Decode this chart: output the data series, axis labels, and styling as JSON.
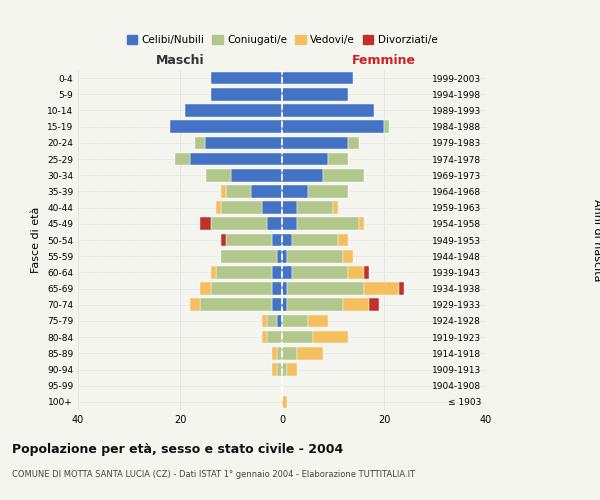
{
  "age_groups": [
    "100+",
    "95-99",
    "90-94",
    "85-89",
    "80-84",
    "75-79",
    "70-74",
    "65-69",
    "60-64",
    "55-59",
    "50-54",
    "45-49",
    "40-44",
    "35-39",
    "30-34",
    "25-29",
    "20-24",
    "15-19",
    "10-14",
    "5-9",
    "0-4"
  ],
  "birth_years": [
    "≤ 1903",
    "1904-1908",
    "1909-1913",
    "1914-1918",
    "1919-1923",
    "1924-1928",
    "1929-1933",
    "1934-1938",
    "1939-1943",
    "1944-1948",
    "1949-1953",
    "1954-1958",
    "1959-1963",
    "1964-1968",
    "1969-1973",
    "1974-1978",
    "1979-1983",
    "1984-1988",
    "1989-1993",
    "1994-1998",
    "1999-2003"
  ],
  "maschi": {
    "celibi": [
      0,
      0,
      0,
      0,
      0,
      1,
      2,
      2,
      2,
      1,
      2,
      3,
      4,
      6,
      10,
      18,
      15,
      22,
      19,
      14,
      14
    ],
    "coniugati": [
      0,
      0,
      1,
      1,
      3,
      2,
      14,
      12,
      11,
      11,
      9,
      11,
      8,
      5,
      5,
      3,
      2,
      0,
      0,
      0,
      0
    ],
    "vedovi": [
      0,
      0,
      1,
      1,
      1,
      1,
      2,
      2,
      1,
      0,
      0,
      0,
      1,
      1,
      0,
      0,
      0,
      0,
      0,
      0,
      0
    ],
    "divorziati": [
      0,
      0,
      0,
      0,
      0,
      0,
      0,
      0,
      0,
      0,
      1,
      2,
      0,
      0,
      0,
      0,
      0,
      0,
      0,
      0,
      0
    ]
  },
  "femmine": {
    "nubili": [
      0,
      0,
      0,
      0,
      0,
      0,
      1,
      1,
      2,
      1,
      2,
      3,
      3,
      5,
      8,
      9,
      13,
      20,
      18,
      13,
      14
    ],
    "coniugate": [
      0,
      0,
      1,
      3,
      6,
      5,
      11,
      15,
      11,
      11,
      9,
      12,
      7,
      8,
      8,
      4,
      2,
      1,
      0,
      0,
      0
    ],
    "vedove": [
      1,
      0,
      2,
      5,
      7,
      4,
      5,
      7,
      3,
      2,
      2,
      1,
      1,
      0,
      0,
      0,
      0,
      0,
      0,
      0,
      0
    ],
    "divorziate": [
      0,
      0,
      0,
      0,
      0,
      0,
      2,
      1,
      1,
      0,
      0,
      0,
      0,
      0,
      0,
      0,
      0,
      0,
      0,
      0,
      0
    ]
  },
  "colors": {
    "celibi_nubili": "#4472C4",
    "coniugati_e": "#B2C78B",
    "vedovi_e": "#F5BE5E",
    "divorziati_e": "#C0312B"
  },
  "xlim": 40,
  "title": "Popolazione per età, sesso e stato civile - 2004",
  "subtitle": "COMUNE DI MOTTA SANTA LUCIA (CZ) - Dati ISTAT 1° gennaio 2004 - Elaborazione TUTTITALIA.IT",
  "ylabel_left": "Fasce di età",
  "ylabel_right": "Anni di nascita",
  "xlabel_left": "Maschi",
  "xlabel_right": "Femmine",
  "legend_labels": [
    "Celibi/Nubili",
    "Coniugati/e",
    "Vedovi/e",
    "Divorziati/e"
  ],
  "bg_color": "#f5f5f0"
}
